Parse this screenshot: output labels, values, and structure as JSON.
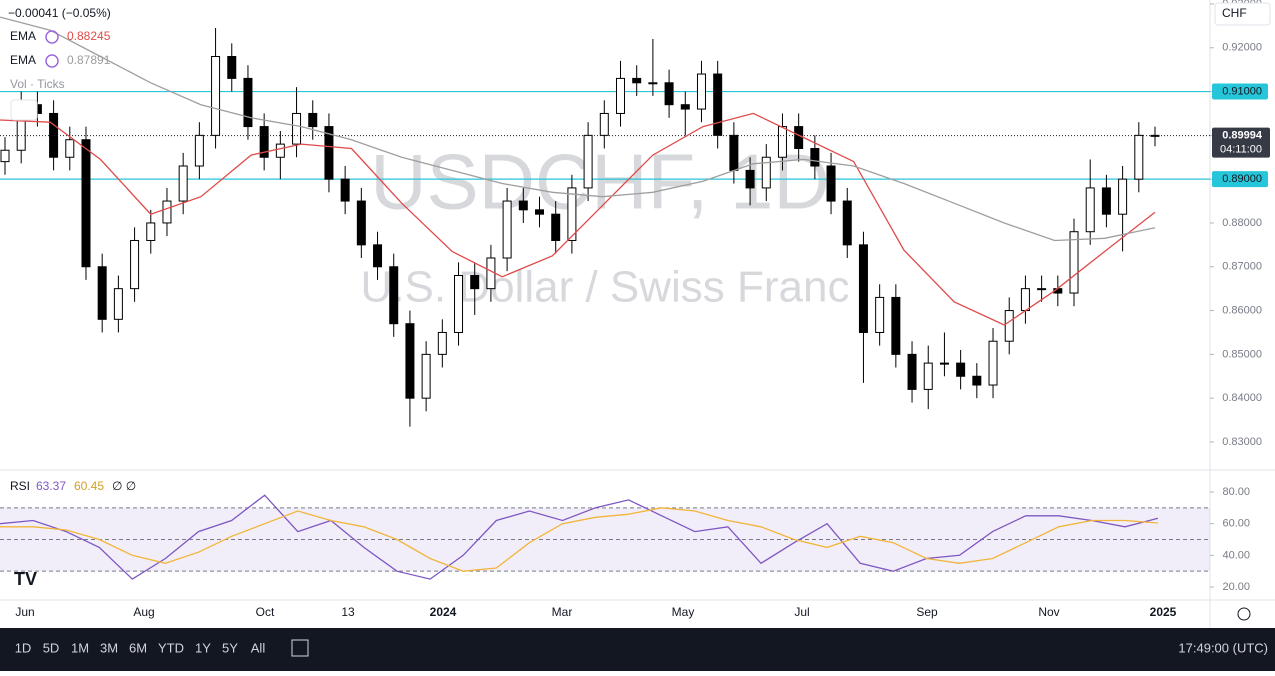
{
  "chart_data": [
    {
      "type": "candlestick",
      "title": "USDCHF, 1D",
      "subtitle": "U.S. Dollar / Swiss Franc",
      "change_label": "−0.00041 (−0.05%)",
      "currency": "CHF",
      "indicator_label": "Vol · Ticks",
      "countdown": "04:11:00",
      "candles": {
        "open": [
          0.894,
          0.8966,
          0.907,
          0.905,
          0.895,
          0.899,
          0.87,
          0.858,
          0.865,
          0.876,
          0.88,
          0.885,
          0.893,
          0.9,
          0.918,
          0.913,
          0.902,
          0.895,
          0.898,
          0.905,
          0.902,
          0.89,
          0.885,
          0.875,
          0.87,
          0.857,
          0.84,
          0.85,
          0.855,
          0.868,
          0.865,
          0.872,
          0.885,
          0.883,
          0.882,
          0.876,
          0.888,
          0.9,
          0.905,
          0.913,
          0.912,
          0.912,
          0.907,
          0.906,
          0.914,
          0.9,
          0.892,
          0.888,
          0.895,
          0.902,
          0.897,
          0.893,
          0.885,
          0.875,
          0.855,
          0.863,
          0.85,
          0.842,
          0.848,
          0.848,
          0.845,
          0.843,
          0.853,
          0.86,
          0.865,
          0.865,
          0.864,
          0.878,
          0.888,
          0.882,
          0.89,
          0.9
        ],
        "high": [
          0.8996,
          0.91,
          0.91,
          0.908,
          0.902,
          0.902,
          0.873,
          0.868,
          0.879,
          0.883,
          0.888,
          0.896,
          0.903,
          0.9245,
          0.921,
          0.916,
          0.905,
          0.901,
          0.911,
          0.908,
          0.905,
          0.893,
          0.888,
          0.878,
          0.873,
          0.86,
          0.853,
          0.858,
          0.871,
          0.871,
          0.875,
          0.888,
          0.888,
          0.886,
          0.885,
          0.891,
          0.903,
          0.908,
          0.917,
          0.916,
          0.922,
          0.915,
          0.91,
          0.917,
          0.917,
          0.903,
          0.895,
          0.898,
          0.905,
          0.905,
          0.9,
          0.896,
          0.888,
          0.878,
          0.866,
          0.866,
          0.853,
          0.852,
          0.855,
          0.851,
          0.848,
          0.856,
          0.863,
          0.868,
          0.868,
          0.868,
          0.881,
          0.8945,
          0.891,
          0.893,
          0.903,
          0.902
        ],
        "low": [
          0.891,
          0.8936,
          0.902,
          0.892,
          0.892,
          0.867,
          0.855,
          0.855,
          0.862,
          0.873,
          0.877,
          0.882,
          0.89,
          0.897,
          0.91,
          0.899,
          0.892,
          0.89,
          0.895,
          0.899,
          0.887,
          0.882,
          0.872,
          0.867,
          0.854,
          0.8335,
          0.837,
          0.847,
          0.852,
          0.859,
          0.862,
          0.869,
          0.88,
          0.879,
          0.873,
          0.873,
          0.885,
          0.897,
          0.902,
          0.909,
          0.909,
          0.904,
          0.9,
          0.903,
          0.897,
          0.889,
          0.884,
          0.885,
          0.892,
          0.894,
          0.89,
          0.882,
          0.872,
          0.8435,
          0.852,
          0.847,
          0.839,
          0.8375,
          0.845,
          0.842,
          0.84,
          0.84,
          0.85,
          0.857,
          0.862,
          0.861,
          0.861,
          0.875,
          0.879,
          0.8735,
          0.887,
          0.8975
        ],
        "close": [
          0.8966,
          0.907,
          0.905,
          0.895,
          0.899,
          0.87,
          0.858,
          0.865,
          0.876,
          0.88,
          0.885,
          0.893,
          0.9,
          0.918,
          0.913,
          0.902,
          0.895,
          0.898,
          0.905,
          0.902,
          0.89,
          0.885,
          0.875,
          0.87,
          0.857,
          0.84,
          0.85,
          0.855,
          0.868,
          0.865,
          0.872,
          0.885,
          0.883,
          0.882,
          0.876,
          0.888,
          0.9,
          0.905,
          0.913,
          0.912,
          0.912,
          0.907,
          0.906,
          0.914,
          0.9,
          0.892,
          0.888,
          0.895,
          0.902,
          0.897,
          0.893,
          0.885,
          0.875,
          0.855,
          0.863,
          0.85,
          0.842,
          0.848,
          0.848,
          0.845,
          0.843,
          0.853,
          0.86,
          0.865,
          0.865,
          0.864,
          0.878,
          0.888,
          0.882,
          0.89,
          0.9,
          0.89994
        ]
      },
      "series": [
        {
          "name": "EMA",
          "color": "#e04a4a",
          "values": [
            0.9035,
            0.903,
            0.8945,
            0.882,
            0.886,
            0.8955,
            0.898,
            0.897,
            0.8845,
            0.8735,
            0.8677,
            0.8725,
            0.884,
            0.8955,
            0.902,
            0.905,
            0.8995,
            0.894,
            0.8738,
            0.862,
            0.8567,
            0.8645,
            0.8735,
            0.88245
          ]
        },
        {
          "name": "EMA",
          "color": "#9e9e9e",
          "values": [
            0.927,
            0.924,
            0.918,
            0.912,
            0.907,
            0.904,
            0.902,
            0.899,
            0.895,
            0.892,
            0.889,
            0.887,
            0.886,
            0.887,
            0.8895,
            0.8935,
            0.8945,
            0.893,
            0.889,
            0.8845,
            0.88,
            0.876,
            0.8765,
            0.87891
          ]
        }
      ],
      "hlines": [
        {
          "value": 0.91,
          "label": "0.91000"
        },
        {
          "value": 0.89,
          "label": "0.89000"
        }
      ],
      "ylim": [
        0.8236,
        0.9309
      ],
      "yticks": [
        {
          "value": 0.83,
          "label": "0.83000"
        },
        {
          "value": 0.84,
          "label": "0.84000"
        },
        {
          "value": 0.85,
          "label": "0.85000"
        },
        {
          "value": 0.86,
          "label": "0.86000"
        },
        {
          "value": 0.87,
          "label": "0.87000"
        },
        {
          "value": 0.88,
          "label": "0.88000"
        },
        {
          "value": 0.89,
          "label": "0.89000"
        },
        {
          "value": 0.9,
          "label": "0.90000"
        },
        {
          "value": 0.91,
          "label": "0.91000"
        },
        {
          "value": 0.92,
          "label": "0.92000"
        },
        {
          "value": 0.93,
          "label": "0.93000"
        }
      ],
      "xaxis_labels": [
        "Jun",
        "Aug",
        "Oct",
        "13",
        "2024",
        "Mar",
        "May",
        "Jul",
        "Sep",
        "Nov",
        "2025"
      ]
    },
    {
      "type": "line",
      "title": "RSI",
      "extra_label": "∅ ∅",
      "series": [
        {
          "name": "RSI",
          "color": "#7e57c2",
          "values": [
            60,
            62,
            55,
            45,
            25,
            38,
            55,
            62,
            78,
            55,
            62,
            45,
            30,
            25,
            40,
            62,
            68,
            62,
            70,
            75,
            65,
            55,
            58,
            35,
            48,
            60,
            35,
            30,
            38,
            40,
            55,
            65,
            65,
            62,
            58,
            63.37
          ]
        },
        {
          "name": "MA",
          "color": "#f2b53a",
          "values": [
            58,
            58,
            56,
            50,
            40,
            35,
            42,
            52,
            60,
            68,
            62,
            58,
            50,
            38,
            30,
            32,
            48,
            60,
            64,
            66,
            70,
            68,
            62,
            58,
            50,
            45,
            52,
            48,
            38,
            35,
            38,
            48,
            58,
            62,
            62,
            60.45
          ]
        }
      ],
      "band": [
        30,
        70
      ],
      "levels": [
        70,
        50,
        30
      ],
      "ylim": [
        11.8,
        93.9
      ],
      "yticks": [
        {
          "value": 80,
          "label": "80.00"
        },
        {
          "value": 60,
          "label": "60.00"
        },
        {
          "value": 40,
          "label": "40.00"
        },
        {
          "value": 20,
          "label": "20.00"
        }
      ]
    }
  ],
  "toolbar": {
    "ranges": [
      "1D",
      "5D",
      "1M",
      "3M",
      "6M",
      "YTD",
      "1Y",
      "5Y",
      "All"
    ],
    "time": "17:49:00 (UTC)"
  }
}
